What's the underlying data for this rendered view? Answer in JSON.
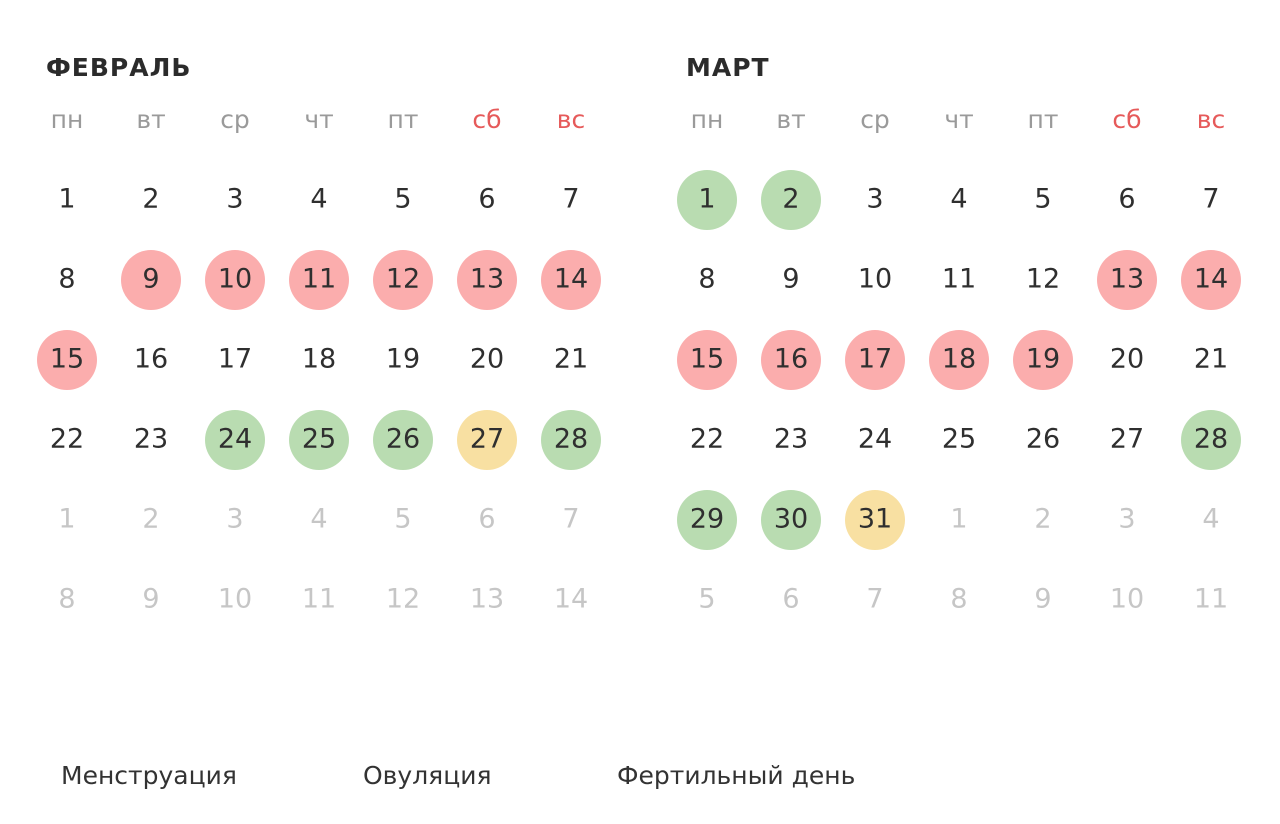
{
  "months": [
    {
      "title": "ФЕВРАЛЬ",
      "weekdays": [
        {
          "label": "пн",
          "color": "#9a9a9a"
        },
        {
          "label": "вт",
          "color": "#9a9a9a"
        },
        {
          "label": "ср",
          "color": "#9a9a9a"
        },
        {
          "label": "чт",
          "color": "#9a9a9a"
        },
        {
          "label": "пт",
          "color": "#9a9a9a"
        },
        {
          "label": "сб",
          "color": "#e65a5a"
        },
        {
          "label": "вс",
          "color": "#e65a5a"
        }
      ],
      "weeks": [
        [
          {
            "day": 1
          },
          {
            "day": 2
          },
          {
            "day": 3
          },
          {
            "day": 4
          },
          {
            "day": 5
          },
          {
            "day": 6
          },
          {
            "day": 7
          }
        ],
        [
          {
            "day": 8
          },
          {
            "day": 9,
            "circle": "#fbadad"
          },
          {
            "day": 10,
            "circle": "#fbadad"
          },
          {
            "day": 11,
            "circle": "#fbadad"
          },
          {
            "day": 12,
            "circle": "#fbadad"
          },
          {
            "day": 13,
            "circle": "#fbadad"
          },
          {
            "day": 14,
            "circle": "#fbadad"
          }
        ],
        [
          {
            "day": 15,
            "circle": "#fbadad"
          },
          {
            "day": 16
          },
          {
            "day": 17
          },
          {
            "day": 18
          },
          {
            "day": 19
          },
          {
            "day": 20
          },
          {
            "day": 21
          }
        ],
        [
          {
            "day": 22
          },
          {
            "day": 23
          },
          {
            "day": 24,
            "circle": "#b9dcb1"
          },
          {
            "day": 25,
            "circle": "#b9dcb1"
          },
          {
            "day": 26,
            "circle": "#b9dcb1"
          },
          {
            "day": 27,
            "circle": "#f8e0a2"
          },
          {
            "day": 28,
            "circle": "#b9dcb1"
          }
        ],
        [
          {
            "day": 1,
            "faded": true
          },
          {
            "day": 2,
            "faded": true
          },
          {
            "day": 3,
            "faded": true
          },
          {
            "day": 4,
            "faded": true
          },
          {
            "day": 5,
            "faded": true
          },
          {
            "day": 6,
            "faded": true
          },
          {
            "day": 7,
            "faded": true
          }
        ],
        [
          {
            "day": 8,
            "faded": true
          },
          {
            "day": 9,
            "faded": true
          },
          {
            "day": 10,
            "faded": true
          },
          {
            "day": 11,
            "faded": true
          },
          {
            "day": 12,
            "faded": true
          },
          {
            "day": 13,
            "faded": true
          },
          {
            "day": 14,
            "faded": true
          }
        ]
      ]
    },
    {
      "title": "МАРТ",
      "weekdays": [
        {
          "label": "пн",
          "color": "#9a9a9a"
        },
        {
          "label": "вт",
          "color": "#9a9a9a"
        },
        {
          "label": "ср",
          "color": "#9a9a9a"
        },
        {
          "label": "чт",
          "color": "#9a9a9a"
        },
        {
          "label": "пт",
          "color": "#9a9a9a"
        },
        {
          "label": "сб",
          "color": "#e65a5a"
        },
        {
          "label": "вс",
          "color": "#e65a5a"
        }
      ],
      "weeks": [
        [
          {
            "day": 1,
            "circle": "#b9dcb1"
          },
          {
            "day": 2,
            "circle": "#b9dcb1"
          },
          {
            "day": 3
          },
          {
            "day": 4
          },
          {
            "day": 5
          },
          {
            "day": 6
          },
          {
            "day": 7
          }
        ],
        [
          {
            "day": 8
          },
          {
            "day": 9
          },
          {
            "day": 10
          },
          {
            "day": 11
          },
          {
            "day": 12
          },
          {
            "day": 13,
            "circle": "#fbadad"
          },
          {
            "day": 14,
            "circle": "#fbadad"
          }
        ],
        [
          {
            "day": 15,
            "circle": "#fbadad"
          },
          {
            "day": 16,
            "circle": "#fbadad"
          },
          {
            "day": 17,
            "circle": "#fbadad"
          },
          {
            "day": 18,
            "circle": "#fbadad"
          },
          {
            "day": 19,
            "circle": "#fbadad"
          },
          {
            "day": 20
          },
          {
            "day": 21
          }
        ],
        [
          {
            "day": 22
          },
          {
            "day": 23
          },
          {
            "day": 24
          },
          {
            "day": 25
          },
          {
            "day": 26
          },
          {
            "day": 27
          },
          {
            "day": 28,
            "circle": "#b9dcb1"
          }
        ],
        [
          {
            "day": 29,
            "circle": "#b9dcb1"
          },
          {
            "day": 30,
            "circle": "#b9dcb1"
          },
          {
            "day": 31,
            "circle": "#f8e0a2"
          },
          {
            "day": 1,
            "faded": true
          },
          {
            "day": 2,
            "faded": true
          },
          {
            "day": 3,
            "faded": true
          },
          {
            "day": 4,
            "faded": true
          }
        ],
        [
          {
            "day": 5,
            "faded": true
          },
          {
            "day": 6,
            "faded": true
          },
          {
            "day": 7,
            "faded": true
          },
          {
            "day": 8,
            "faded": true
          },
          {
            "day": 9,
            "faded": true
          },
          {
            "day": 10,
            "faded": true
          },
          {
            "day": 11,
            "faded": true
          }
        ]
      ]
    }
  ],
  "legend": [
    "Менструация",
    "Овуляция",
    "Фертильный день"
  ]
}
